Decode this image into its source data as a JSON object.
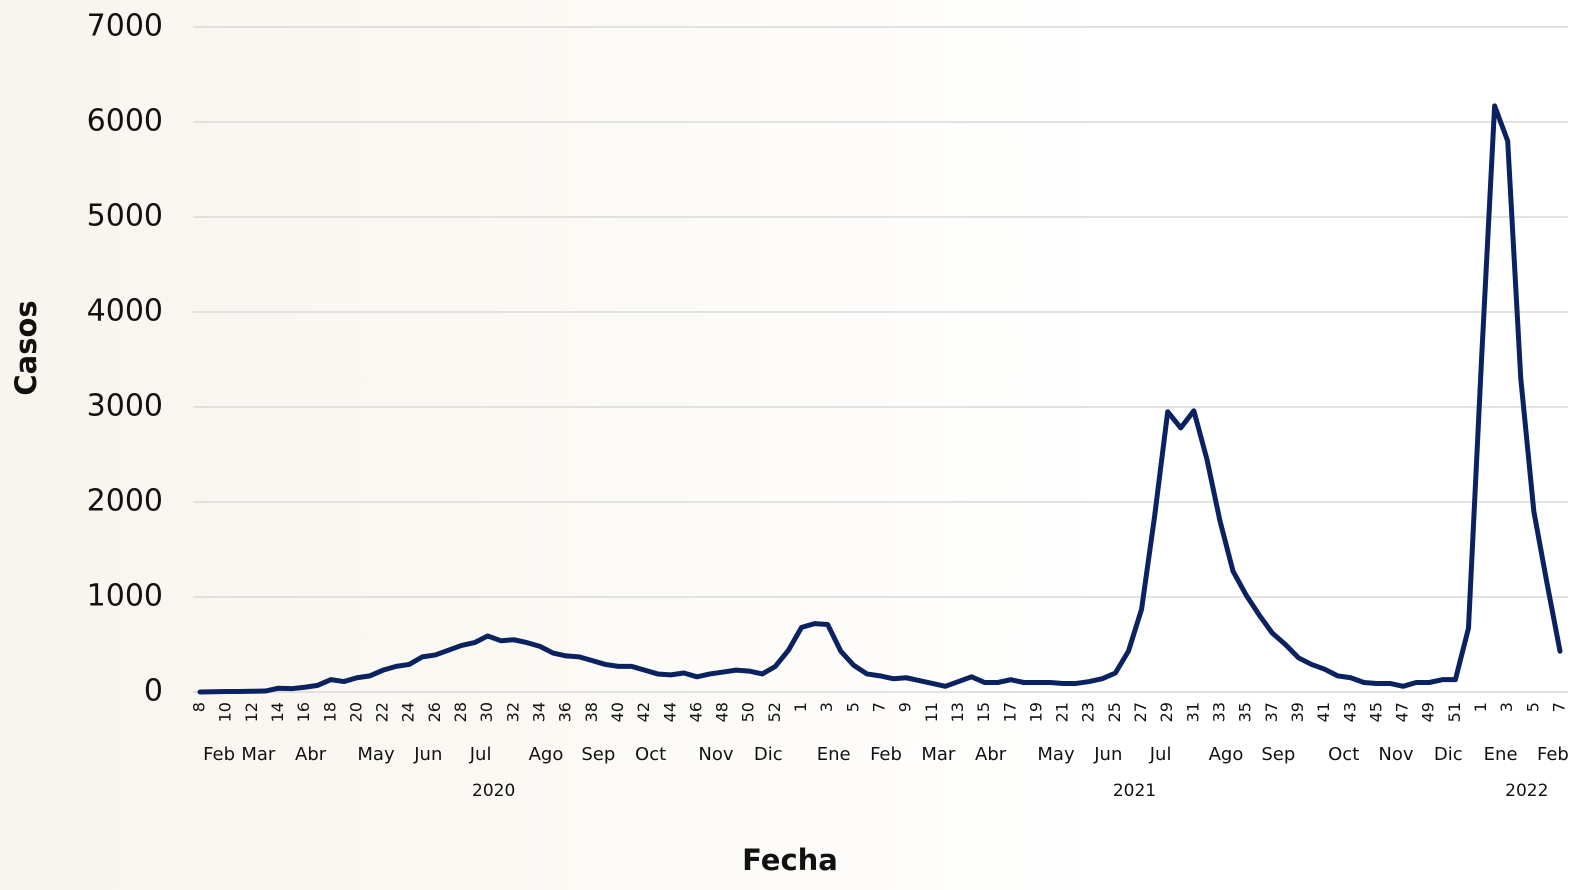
{
  "chart_data": {
    "type": "line",
    "xlabel": "Fecha",
    "ylabel": "Casos",
    "categories": [
      "8",
      null,
      "10",
      null,
      "12",
      null,
      "14",
      null,
      "16",
      null,
      "18",
      null,
      "20",
      null,
      "22",
      null,
      "24",
      null,
      "26",
      null,
      "28",
      null,
      "30",
      null,
      "32",
      null,
      "34",
      null,
      "36",
      null,
      "38",
      null,
      "40",
      null,
      "42",
      null,
      "44",
      null,
      "46",
      null,
      "48",
      null,
      "50",
      null,
      "52",
      null,
      "1",
      null,
      "3",
      null,
      "5",
      null,
      "7",
      null,
      "9",
      null,
      "11",
      null,
      "13",
      null,
      "15",
      null,
      "17",
      null,
      "19",
      null,
      "21",
      null,
      "23",
      null,
      "25",
      null,
      "27",
      null,
      "29",
      null,
      "31",
      null,
      "33",
      null,
      "35",
      null,
      "37",
      null,
      "39",
      null,
      "41",
      null,
      "43",
      null,
      "45",
      null,
      "47",
      null,
      "49",
      null,
      "51",
      null,
      "1",
      null,
      "3",
      null,
      "5",
      null,
      "7"
    ],
    "months": [
      null,
      "Feb",
      null,
      null,
      "Mar",
      null,
      null,
      null,
      "Abr",
      null,
      null,
      null,
      null,
      "May",
      null,
      null,
      null,
      "Jun",
      null,
      null,
      null,
      "Jul",
      null,
      null,
      null,
      null,
      "Ago",
      null,
      null,
      null,
      "Sep",
      null,
      null,
      null,
      "Oct",
      null,
      null,
      null,
      null,
      "Nov",
      null,
      null,
      null,
      "Dic",
      null,
      null,
      null,
      null,
      "Ene",
      null,
      null,
      null,
      "Feb",
      null,
      null,
      null,
      "Mar",
      null,
      null,
      null,
      "Abr",
      null,
      null,
      null,
      null,
      "May",
      null,
      null,
      null,
      "Jun",
      null,
      null,
      null,
      "Jul",
      null,
      null,
      null,
      null,
      "Ago",
      null,
      null,
      null,
      "Sep",
      null,
      null,
      null,
      null,
      "Oct",
      null,
      null,
      null,
      "Nov",
      null,
      null,
      null,
      "Dic",
      null,
      null,
      null,
      "Ene",
      null,
      null,
      null,
      "Feb",
      null
    ],
    "years": [
      null,
      null,
      null,
      null,
      null,
      null,
      null,
      null,
      null,
      null,
      null,
      null,
      null,
      null,
      null,
      null,
      null,
      null,
      null,
      null,
      null,
      null,
      "2020",
      null,
      null,
      null,
      null,
      null,
      null,
      null,
      null,
      null,
      null,
      null,
      null,
      null,
      null,
      null,
      null,
      null,
      null,
      null,
      null,
      null,
      null,
      null,
      null,
      null,
      null,
      null,
      null,
      null,
      null,
      null,
      null,
      null,
      null,
      null,
      null,
      null,
      null,
      null,
      null,
      null,
      null,
      null,
      null,
      null,
      null,
      null,
      null,
      "2021",
      null,
      null,
      null,
      null,
      null,
      null,
      null,
      null,
      null,
      null,
      null,
      null,
      null,
      null,
      null,
      null,
      null,
      null,
      null,
      null,
      null,
      null,
      null,
      null,
      null,
      null,
      null,
      null,
      null,
      "2022",
      null,
      null,
      null
    ],
    "series": [
      {
        "name": "Casos",
        "color": "#0b2260",
        "values": [
          0,
          2,
          5,
          5,
          8,
          10,
          40,
          35,
          50,
          70,
          130,
          110,
          150,
          170,
          230,
          270,
          290,
          370,
          390,
          440,
          490,
          520,
          590,
          540,
          550,
          520,
          480,
          410,
          380,
          370,
          330,
          290,
          270,
          270,
          230,
          190,
          180,
          200,
          160,
          190,
          210,
          230,
          220,
          190,
          270,
          440,
          680,
          720,
          710,
          430,
          280,
          190,
          170,
          140,
          150,
          120,
          90,
          60,
          110,
          160,
          100,
          100,
          130,
          100,
          100,
          100,
          90,
          90,
          110,
          140,
          200,
          430,
          870,
          1850,
          2950,
          2780,
          2960,
          2450,
          1800,
          1270,
          1020,
          810,
          620,
          500,
          360,
          290,
          240,
          170,
          150,
          100,
          90,
          90,
          60,
          100,
          100,
          130,
          130,
          670,
          3500,
          6170,
          5800,
          3300,
          1900,
          1150,
          430
        ]
      }
    ],
    "ylim": [
      0,
      7000
    ],
    "yticks": [
      0,
      1000,
      2000,
      3000,
      4000,
      5000,
      6000,
      7000
    ],
    "grid": true
  }
}
